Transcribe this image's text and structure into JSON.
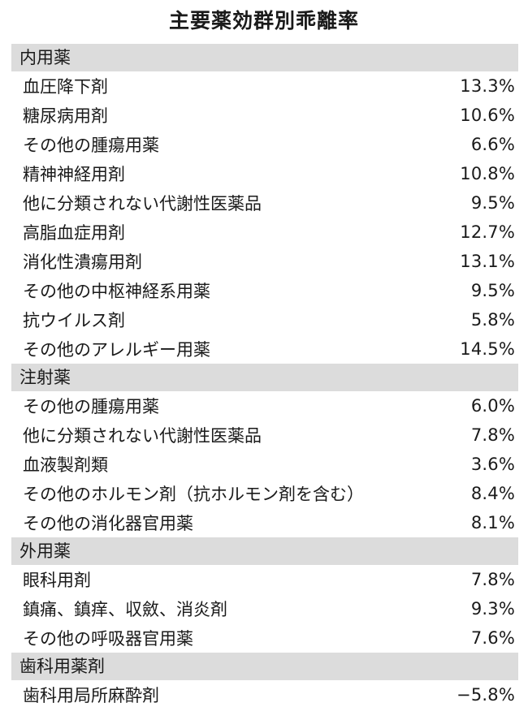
{
  "title": "主要薬効群別乖離率",
  "sections": [
    {
      "header": "内用薬",
      "rows": [
        {
          "name": "血圧降下剤",
          "value": "13.3%"
        },
        {
          "name": "糖尿病用剤",
          "value": "10.6%"
        },
        {
          "name": "その他の腫瘍用薬",
          "value": "6.6%"
        },
        {
          "name": "精神神経用剤",
          "value": "10.8%"
        },
        {
          "name": "他に分類されない代謝性医薬品",
          "value": "9.5%"
        },
        {
          "name": "高脂血症用剤",
          "value": "12.7%"
        },
        {
          "name": "消化性潰瘍用剤",
          "value": "13.1%"
        },
        {
          "name": "その他の中枢神経系用薬",
          "value": "9.5%"
        },
        {
          "name": "抗ウイルス剤",
          "value": "5.8%"
        },
        {
          "name": "その他のアレルギー用薬",
          "value": "14.5%"
        }
      ]
    },
    {
      "header": "注射薬",
      "rows": [
        {
          "name": "その他の腫瘍用薬",
          "value": "6.0%"
        },
        {
          "name": "他に分類されない代謝性医薬品",
          "value": "7.8%"
        },
        {
          "name": "血液製剤類",
          "value": "3.6%"
        },
        {
          "name": "その他のホルモン剤（抗ホルモン剤を含む）",
          "value": "8.4%"
        },
        {
          "name": "その他の消化器官用薬",
          "value": "8.1%"
        }
      ]
    },
    {
      "header": "外用薬",
      "rows": [
        {
          "name": "眼科用剤",
          "value": "7.8%"
        },
        {
          "name": "鎮痛、鎮痒、収斂、消炎剤",
          "value": "9.3%"
        },
        {
          "name": "その他の呼吸器官用薬",
          "value": "7.6%"
        }
      ]
    },
    {
      "header": "歯科用薬剤",
      "rows": [
        {
          "name": "歯科用局所麻酔剤",
          "value": "−5.8%"
        }
      ]
    }
  ]
}
